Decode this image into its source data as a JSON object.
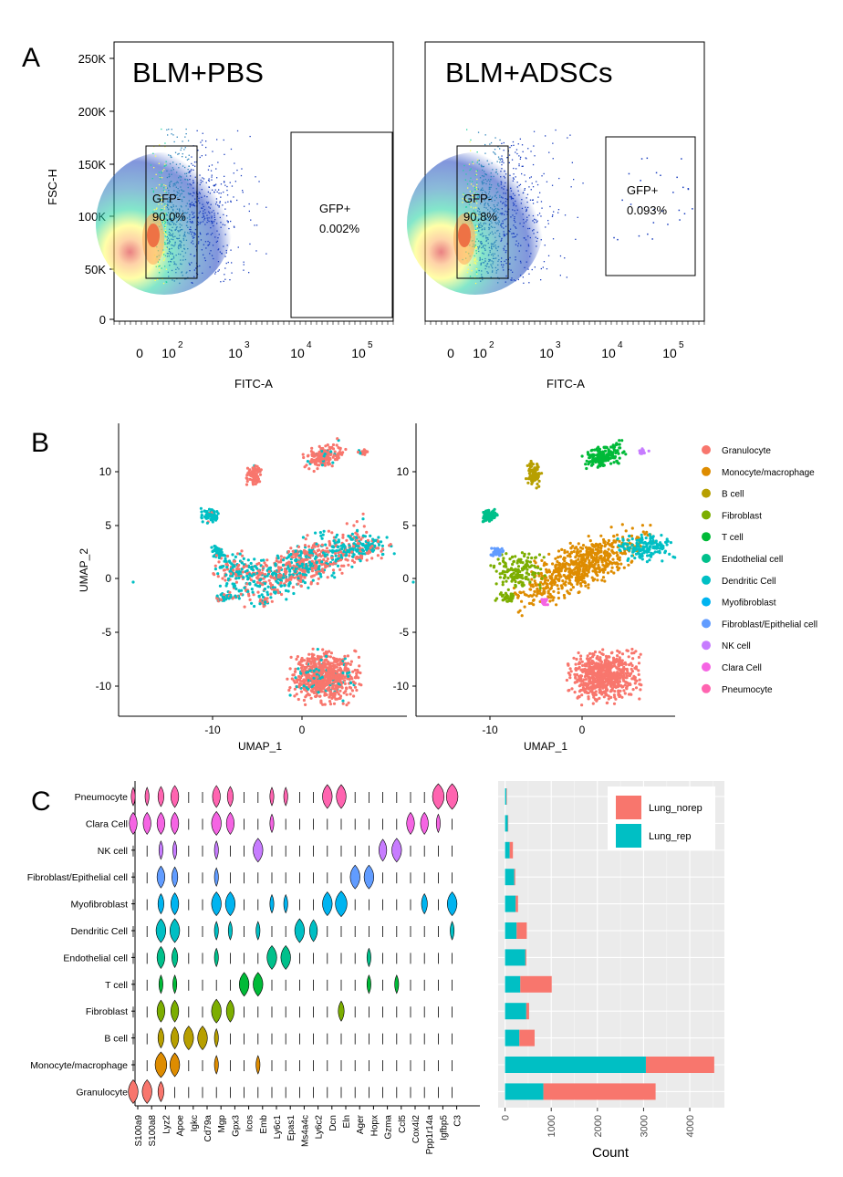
{
  "panels": {
    "a_label": "A",
    "b_label": "B",
    "c_label": "C"
  },
  "flow": {
    "ylabel": "FSC-H",
    "xlabel": "FITC-A",
    "yticks": [
      "250K",
      "200K",
      "150K",
      "100K",
      "50K",
      "0"
    ],
    "xticks": [
      "0",
      "10",
      "10",
      "10",
      "10"
    ],
    "xtick_exp": [
      "2",
      "3",
      "4",
      "5"
    ],
    "left": {
      "title": "BLM+PBS",
      "neg_label": "GFP-",
      "neg_pct": "90.0%",
      "pos_label": "GFP+",
      "pos_pct": "0.002%"
    },
    "right": {
      "title": "BLM+ADSCs",
      "neg_label": "GFP-",
      "neg_pct": "90.8%",
      "pos_label": "GFP+",
      "pos_pct": "0.093%"
    }
  },
  "umap": {
    "ylabel": "UMAP_2",
    "xlabel": "UMAP_1",
    "yticks": [
      "10",
      "5",
      "0",
      "-5",
      "-10"
    ],
    "xticks": [
      "-10",
      "0"
    ],
    "legend": [
      {
        "name": "Granulocyte",
        "color": "#F8766D"
      },
      {
        "name": "Monocyte/macrophage",
        "color": "#DE8C00"
      },
      {
        "name": "B cell",
        "color": "#B79F00"
      },
      {
        "name": "Fibroblast",
        "color": "#7CAE00"
      },
      {
        "name": "T cell",
        "color": "#00BA38"
      },
      {
        "name": "Endothelial cell",
        "color": "#00C08B"
      },
      {
        "name": "Dendritic Cell",
        "color": "#00BFC4"
      },
      {
        "name": "Myofibroblast",
        "color": "#00B4F0"
      },
      {
        "name": "Fibroblast/Epithelial cell",
        "color": "#619CFF"
      },
      {
        "name": "NK cell",
        "color": "#C77CFF"
      },
      {
        "name": "Clara Cell",
        "color": "#F564E3"
      },
      {
        "name": "Pneumocyte",
        "color": "#FF64B0"
      }
    ]
  },
  "violin": {
    "rows": [
      "Pneumocyte",
      "Clara Cell",
      "NK cell",
      "Fibroblast/Epithelial cell",
      "Myofibroblast",
      "Dendritic Cell",
      "Endothelial cell",
      "T cell",
      "Fibroblast",
      "B cell",
      "Monocyte/macrophage",
      "Granulocyte"
    ],
    "genes": [
      "S100a9",
      "S100a8",
      "Lyz2",
      "Apoe",
      "Igkc",
      "Cd79a",
      "Mgp",
      "Gpx3",
      "Icos",
      "Emb",
      "Ly6c1",
      "Epas1",
      "Ms4a4c",
      "Ly6c2",
      "Dcn",
      "Eln",
      "Ager",
      "Hopx",
      "Gzma",
      "Ccl5",
      "Cox4i2",
      "Ppp1r14a",
      "Igfbp5",
      "C3"
    ],
    "row_colors": [
      "#FF64B0",
      "#F564E3",
      "#C77CFF",
      "#619CFF",
      "#00B4F0",
      "#00BFC4",
      "#00C08B",
      "#00BA38",
      "#7CAE00",
      "#B79F00",
      "#DE8C00",
      "#F8766D"
    ],
    "expression": [
      [
        1,
        1,
        2,
        3,
        0,
        0,
        3,
        2,
        0,
        0,
        1,
        1,
        0,
        0,
        4,
        4,
        0,
        0,
        0,
        0,
        0,
        0,
        5,
        5
      ],
      [
        3,
        3,
        3,
        3,
        0,
        0,
        4,
        3,
        0,
        0,
        1,
        0,
        0,
        0,
        0,
        0,
        0,
        0,
        0,
        0,
        3,
        3,
        1,
        0
      ],
      [
        0,
        0,
        1,
        1,
        0,
        0,
        1,
        0,
        0,
        4,
        0,
        0,
        0,
        0,
        0,
        0,
        0,
        0,
        3,
        4,
        0,
        0,
        0,
        0
      ],
      [
        0,
        0,
        3,
        2,
        0,
        0,
        1,
        0,
        0,
        0,
        0,
        0,
        0,
        0,
        0,
        0,
        4,
        4,
        0,
        0,
        0,
        0,
        0,
        0
      ],
      [
        0,
        0,
        2,
        3,
        0,
        0,
        4,
        4,
        0,
        0,
        1,
        1,
        0,
        0,
        4,
        5,
        0,
        0,
        0,
        0,
        0,
        2,
        0,
        4
      ],
      [
        0,
        0,
        4,
        4,
        0,
        0,
        1,
        1,
        0,
        1,
        0,
        0,
        4,
        3,
        0,
        0,
        0,
        0,
        0,
        0,
        0,
        0,
        0,
        1
      ],
      [
        0,
        0,
        3,
        2,
        0,
        0,
        1,
        0,
        0,
        0,
        4,
        4,
        0,
        0,
        0,
        0,
        0,
        1,
        0,
        0,
        0,
        0,
        0,
        0
      ],
      [
        0,
        0,
        1,
        1,
        0,
        0,
        0,
        0,
        4,
        4,
        0,
        0,
        0,
        0,
        0,
        0,
        0,
        1,
        0,
        1,
        0,
        0,
        0,
        0
      ],
      [
        0,
        0,
        3,
        3,
        0,
        0,
        4,
        3,
        0,
        0,
        0,
        0,
        0,
        0,
        0,
        2,
        0,
        0,
        0,
        0,
        0,
        0,
        0,
        0
      ],
      [
        0,
        0,
        2,
        3,
        4,
        4,
        1,
        0,
        0,
        0,
        0,
        0,
        0,
        0,
        0,
        0,
        0,
        0,
        0,
        0,
        0,
        0,
        0,
        0
      ],
      [
        0,
        0,
        5,
        4,
        0,
        0,
        1,
        0,
        0,
        1,
        0,
        0,
        0,
        0,
        0,
        0,
        0,
        0,
        0,
        0,
        0,
        0,
        0,
        0
      ],
      [
        4,
        4,
        2,
        0,
        0,
        0,
        0,
        0,
        0,
        0,
        0,
        0,
        0,
        0,
        0,
        0,
        0,
        0,
        0,
        0,
        0,
        0,
        0,
        0
      ]
    ]
  },
  "chart_data": {
    "type": "bar",
    "orientation": "horizontal",
    "stacked": true,
    "categories": [
      "Pneumocyte",
      "Clara Cell",
      "NK cell",
      "Fibroblast/Epithelial cell",
      "Myofibroblast",
      "Dendritic Cell",
      "Endothelial cell",
      "T cell",
      "Fibroblast",
      "B cell",
      "Monocyte/macrophage",
      "Granulocyte"
    ],
    "series": [
      {
        "name": "Lung_rep",
        "color": "#00BFC4",
        "values": [
          30,
          60,
          100,
          200,
          230,
          250,
          440,
          330,
          460,
          310,
          3050,
          830
        ]
      },
      {
        "name": "Lung_norep",
        "color": "#F8766D",
        "values": [
          10,
          10,
          70,
          20,
          50,
          220,
          20,
          680,
          60,
          330,
          1480,
          2430
        ]
      }
    ],
    "legend_order": [
      "Lung_norep",
      "Lung_rep"
    ],
    "xlabel": "Count",
    "xticks": [
      "0",
      "1000",
      "2000",
      "3000",
      "4000"
    ],
    "xlim": [
      -150,
      4750
    ]
  }
}
